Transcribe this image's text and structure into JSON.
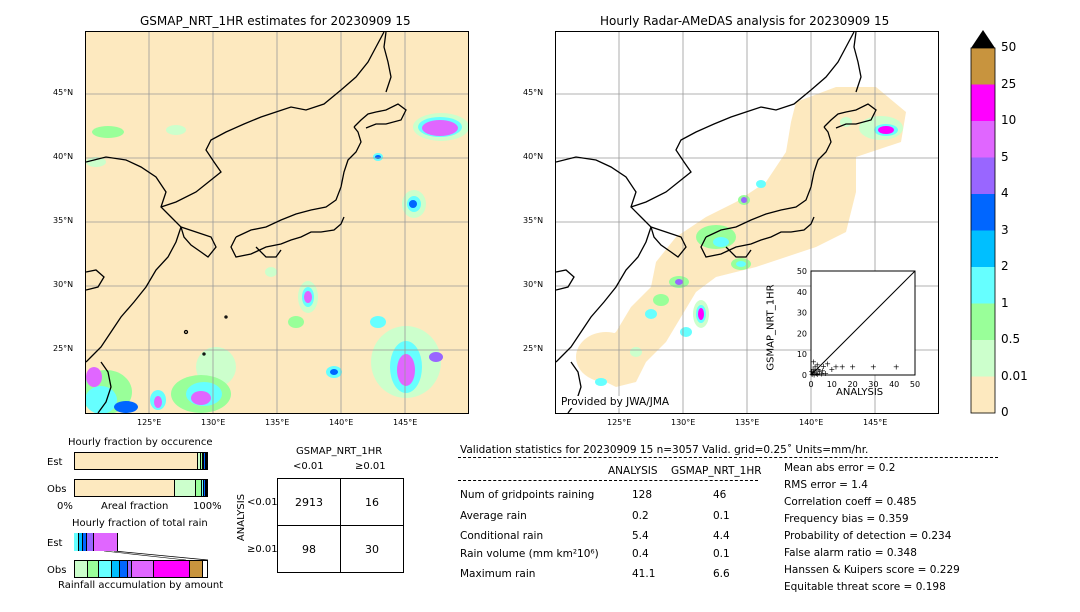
{
  "left_map": {
    "title": "GSMAP_NRT_1HR estimates for 20230909 15",
    "lat_labels": [
      "45°N",
      "40°N",
      "35°N",
      "30°N",
      "25°N"
    ],
    "lon_labels": [
      "125°E",
      "130°E",
      "135°E",
      "140°E",
      "145°E"
    ]
  },
  "right_map": {
    "title": "Hourly Radar-AMeDAS analysis for 20230909 15",
    "lat_labels": [
      "45°N",
      "40°N",
      "35°N",
      "30°N",
      "25°N"
    ],
    "lon_labels": [
      "125°E",
      "130°E",
      "135°E",
      "140°E",
      "145°E"
    ],
    "credit": "Provided by JWA/JMA"
  },
  "colorbar": {
    "labels": [
      "50",
      "25",
      "10",
      "5",
      "4",
      "3",
      "2",
      "1",
      "0.5",
      "0.01",
      "0"
    ],
    "colors": [
      "#c8943e",
      "#ff00ff",
      "#e066ff",
      "#9966ff",
      "#0066ff",
      "#00bfff",
      "#66ffff",
      "#99ff99",
      "#ccffcc",
      "#fde9bf"
    ]
  },
  "chart_data": [
    {
      "type": "scatter",
      "title": "",
      "xlabel": "ANALYSIS",
      "ylabel": "GSMAP_NRT_1HR",
      "xlim": [
        0,
        50
      ],
      "ylim": [
        0,
        50
      ],
      "ticks": [
        "0",
        "10",
        "20",
        "30",
        "40",
        "50"
      ],
      "points": [
        [
          0.5,
          0.5
        ],
        [
          1,
          1.5
        ],
        [
          1.5,
          0.3
        ],
        [
          2,
          2.5
        ],
        [
          2.5,
          1
        ],
        [
          3,
          0.5
        ],
        [
          3.5,
          3
        ],
        [
          4,
          1.8
        ],
        [
          5,
          0.8
        ],
        [
          5.5,
          2.2
        ],
        [
          6,
          4.4
        ],
        [
          7,
          1
        ],
        [
          8,
          5.5
        ],
        [
          10,
          3
        ],
        [
          12,
          4
        ],
        [
          15,
          4
        ],
        [
          20,
          4
        ],
        [
          30,
          4
        ],
        [
          41,
          4
        ],
        [
          1,
          3
        ],
        [
          0.3,
          2
        ],
        [
          2,
          4
        ],
        [
          3,
          5
        ],
        [
          1.2,
          6.6
        ]
      ]
    },
    {
      "type": "bar",
      "title": "Hourly fraction by occurence",
      "categories": [
        "Est",
        "Obs"
      ],
      "xlabel": "Areal fraction",
      "x_left_label": "0%",
      "x_right_label": "100%",
      "series": [
        {
          "name": "Est",
          "segments": [
            {
              "color": "#fde9bf",
              "value": 0.935
            },
            {
              "color": "#ccffcc",
              "value": 0.02
            },
            {
              "color": "#99ff99",
              "value": 0.015
            },
            {
              "color": "#00bfff",
              "value": 0.01
            },
            {
              "color": "#0066ff",
              "value": 0.01
            },
            {
              "color": "#222222",
              "value": 0.01
            }
          ]
        },
        {
          "name": "Obs",
          "segments": [
            {
              "color": "#fde9bf",
              "value": 0.76
            },
            {
              "color": "#ccffcc",
              "value": 0.16
            },
            {
              "color": "#99ff99",
              "value": 0.04
            },
            {
              "color": "#66ffff",
              "value": 0.015
            },
            {
              "color": "#0066ff",
              "value": 0.015
            },
            {
              "color": "#222222",
              "value": 0.01
            }
          ]
        }
      ]
    },
    {
      "type": "bar",
      "title": "Hourly fraction of total rain",
      "categories": [
        "Est",
        "Obs"
      ],
      "xlabel": "Rainfall accumulation by amount",
      "series": [
        {
          "name": "Est",
          "segments": [
            {
              "color": "#66ffff",
              "value": 0.04
            },
            {
              "color": "#00bfff",
              "value": 0.03
            },
            {
              "color": "#0066ff",
              "value": 0.03
            },
            {
              "color": "#9966ff",
              "value": 0.05
            },
            {
              "color": "#e066ff",
              "value": 0.18
            }
          ]
        },
        {
          "name": "Obs",
          "segments": [
            {
              "color": "#ccffcc",
              "value": 0.1
            },
            {
              "color": "#99ff99",
              "value": 0.08
            },
            {
              "color": "#66ffff",
              "value": 0.1
            },
            {
              "color": "#00bfff",
              "value": 0.06
            },
            {
              "color": "#0066ff",
              "value": 0.06
            },
            {
              "color": "#9966ff",
              "value": 0.03
            },
            {
              "color": "#e066ff",
              "value": 0.17
            },
            {
              "color": "#ff00ff",
              "value": 0.27
            },
            {
              "color": "#c8943e",
              "value": 0.1
            }
          ]
        }
      ]
    },
    {
      "type": "table",
      "title": "GSMAP_NRT_1HR",
      "col_labels": [
        "<0.01",
        "≥0.01"
      ],
      "row_axis_label": "ANALYSIS",
      "row_labels": [
        "<0.01",
        "≥0.01"
      ],
      "cells": [
        [
          "2913",
          "16"
        ],
        [
          "98",
          "30"
        ]
      ]
    }
  ],
  "validation": {
    "header": "Validation statistics for 20230909 15  n=3057 Valid. grid=0.25˚ Units=mm/hr.",
    "col_analysis": "ANALYSIS",
    "col_gsmap": "GSMAP_NRT_1HR",
    "rows": [
      {
        "label": "Num of gridpoints raining",
        "analysis": "128",
        "gsmap": "46"
      },
      {
        "label": "Average rain",
        "analysis": "0.2",
        "gsmap": "0.1"
      },
      {
        "label": "Conditional rain",
        "analysis": "5.4",
        "gsmap": "4.4"
      },
      {
        "label": "Rain volume (mm km²10⁶)",
        "analysis": "0.4",
        "gsmap": "0.1"
      },
      {
        "label": "Maximum rain",
        "analysis": "41.1",
        "gsmap": "6.6"
      }
    ],
    "scores": [
      "Mean abs error =    0.2",
      "RMS error =    1.4",
      "Correlation coeff =  0.485",
      "Frequency bias =  0.359",
      "Probability of detection =  0.234",
      "False alarm ratio =  0.348",
      "Hanssen & Kuipers score =  0.229",
      "Equitable threat score =  0.198"
    ]
  }
}
